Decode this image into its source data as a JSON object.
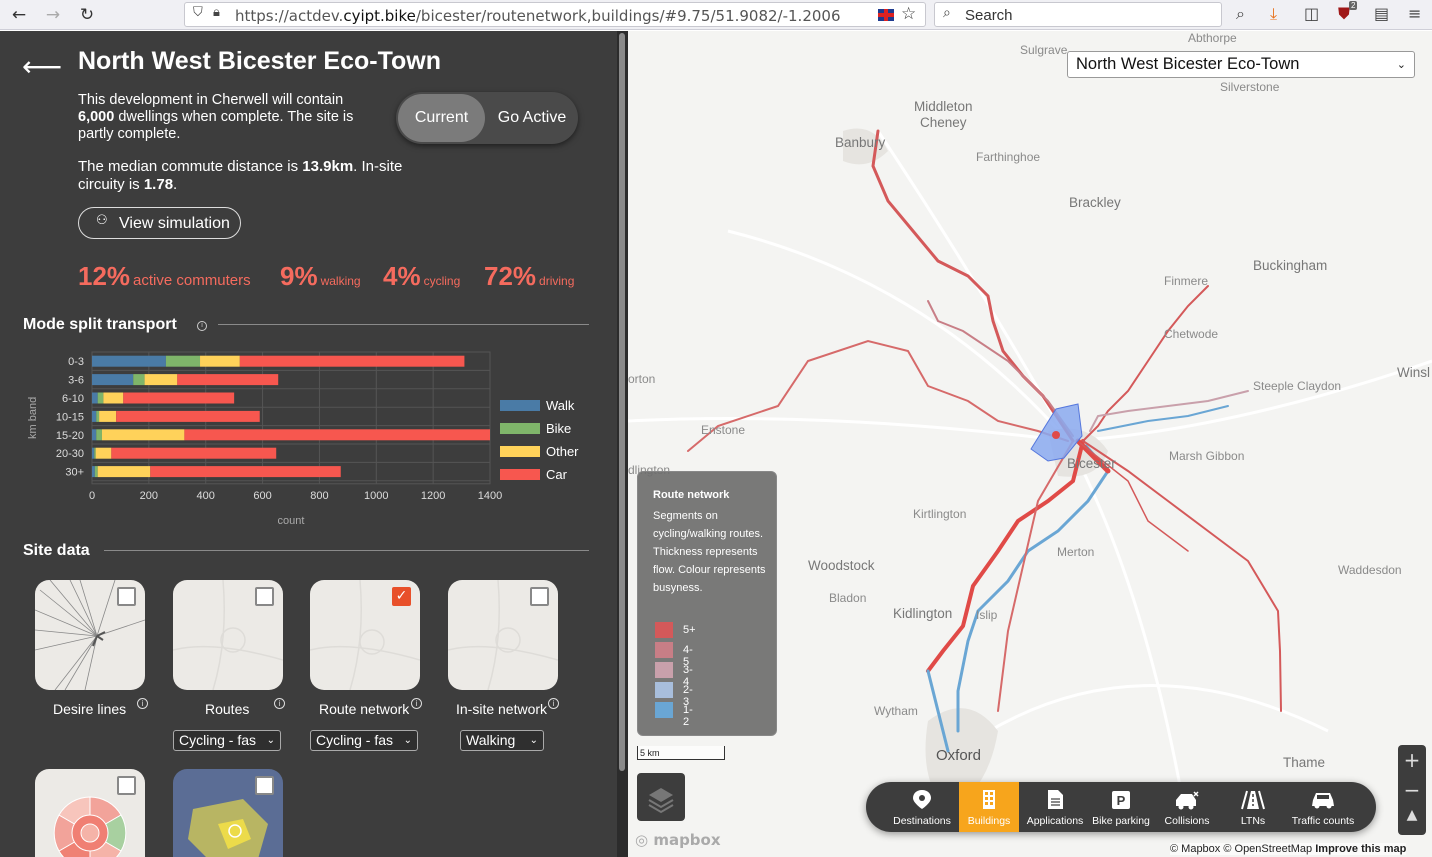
{
  "browser": {
    "url_prefix": "https://actdev.",
    "url_domain": "cyipt.bike",
    "url_path": "/bicester/routenetwork,buildings/#9.75/51.9082/-1.2006",
    "search_placeholder": "Search",
    "extension_badge": "2"
  },
  "site": {
    "title": "North West Bicester Eco-Town",
    "desc_pre": "This development in Cherwell will contain ",
    "desc_dwellings": "6,000",
    "desc_post": " dwellings when complete. The site is partly complete.",
    "commute_pre": "The median commute distance is ",
    "commute_km": "13.9km",
    "commute_mid": ". In-site circuity is ",
    "circuity": "1.78",
    "commute_end": "."
  },
  "scenario_toggle": {
    "current": "Current",
    "go_active": "Go Active"
  },
  "simulation_button": "View simulation",
  "stats": [
    {
      "value": "12%",
      "label": "active commuters"
    },
    {
      "value": "9%",
      "label": "walking"
    },
    {
      "value": "4%",
      "label": "cycling"
    },
    {
      "value": "72%",
      "label": "driving"
    }
  ],
  "mode_split": {
    "heading": "Mode split transport"
  },
  "chart_data": {
    "type": "bar",
    "orientation": "horizontal",
    "stacked": true,
    "categories": [
      "0-3",
      "3-6",
      "6-10",
      "10-15",
      "15-20",
      "20-30",
      "30+"
    ],
    "series": [
      {
        "name": "Walk",
        "color": "#4a7ba6",
        "values": [
          260,
          145,
          20,
          15,
          15,
          8,
          10
        ]
      },
      {
        "name": "Bike",
        "color": "#7fb56a",
        "values": [
          120,
          40,
          20,
          10,
          20,
          5,
          10
        ]
      },
      {
        "name": "Other",
        "color": "#ffd25a",
        "values": [
          140,
          115,
          70,
          60,
          290,
          55,
          185
        ]
      },
      {
        "name": "Car",
        "color": "#f7574f",
        "values": [
          790,
          355,
          390,
          505,
          1075,
          580,
          670
        ]
      }
    ],
    "xlabel": "count",
    "ylabel": "km band",
    "xlim": [
      0,
      1400
    ],
    "xticks": [
      "0",
      "200",
      "400",
      "600",
      "800",
      "1000",
      "1200",
      "1400"
    ],
    "grid": true,
    "legend_position": "right"
  },
  "site_data": {
    "heading": "Site data",
    "tiles": [
      {
        "label": "Desire lines",
        "checked": false,
        "dropdown": ""
      },
      {
        "label": "Routes",
        "checked": false,
        "dropdown": "Cycling - fas"
      },
      {
        "label": "Route network",
        "checked": true,
        "dropdown": "Cycling - fas"
      },
      {
        "label": "In-site network",
        "checked": false,
        "dropdown": "Walking"
      }
    ]
  },
  "map": {
    "site_select": "North West Bicester Eco-Town",
    "places": [
      "Abthorpe",
      "Sulgrave",
      "Silverstone",
      "Middleton",
      "Cheney",
      "Banbury",
      "Farthinghoe",
      "Brackley",
      "Buckingham",
      "Finmere",
      "Chetwode",
      "Winsl",
      "orton",
      "Steeple Claydon",
      "Enstone",
      "Bicester",
      "Marsh Gibbon",
      "dlington",
      "Kirtlington",
      "Merton",
      "Woodstock",
      "Waddesdon",
      "Bladon",
      "Kidlington",
      "Islip",
      "Wytham",
      "Oxford",
      "Thame"
    ],
    "legend": {
      "title": "Route network",
      "desc": "Segments on cycling/walking routes. Thickness represents flow. Colour represents busyness.",
      "items": [
        {
          "label": "5+",
          "color": "#d4595a"
        },
        {
          "label": "4-5",
          "color": "#c87e86"
        },
        {
          "label": "3-4",
          "color": "#c9a0ab"
        },
        {
          "label": "2-3",
          "color": "#a8bedc"
        },
        {
          "label": "1-2",
          "color": "#6aa6d4"
        }
      ]
    },
    "scale": "5 km",
    "toolbar": [
      {
        "label": "Destinations",
        "icon": "pin-icon"
      },
      {
        "label": "Buildings",
        "icon": "building-icon"
      },
      {
        "label": "Applications",
        "icon": "document-icon"
      },
      {
        "label": "Bike parking",
        "icon": "parking-icon"
      },
      {
        "label": "Collisions",
        "icon": "collision-icon"
      },
      {
        "label": "LTNs",
        "icon": "road-icon"
      },
      {
        "label": "Traffic counts",
        "icon": "car-icon"
      }
    ],
    "mapbox": "mapbox",
    "attribution": "© Mapbox © OpenStreetMap",
    "improve": "Improve this map"
  }
}
